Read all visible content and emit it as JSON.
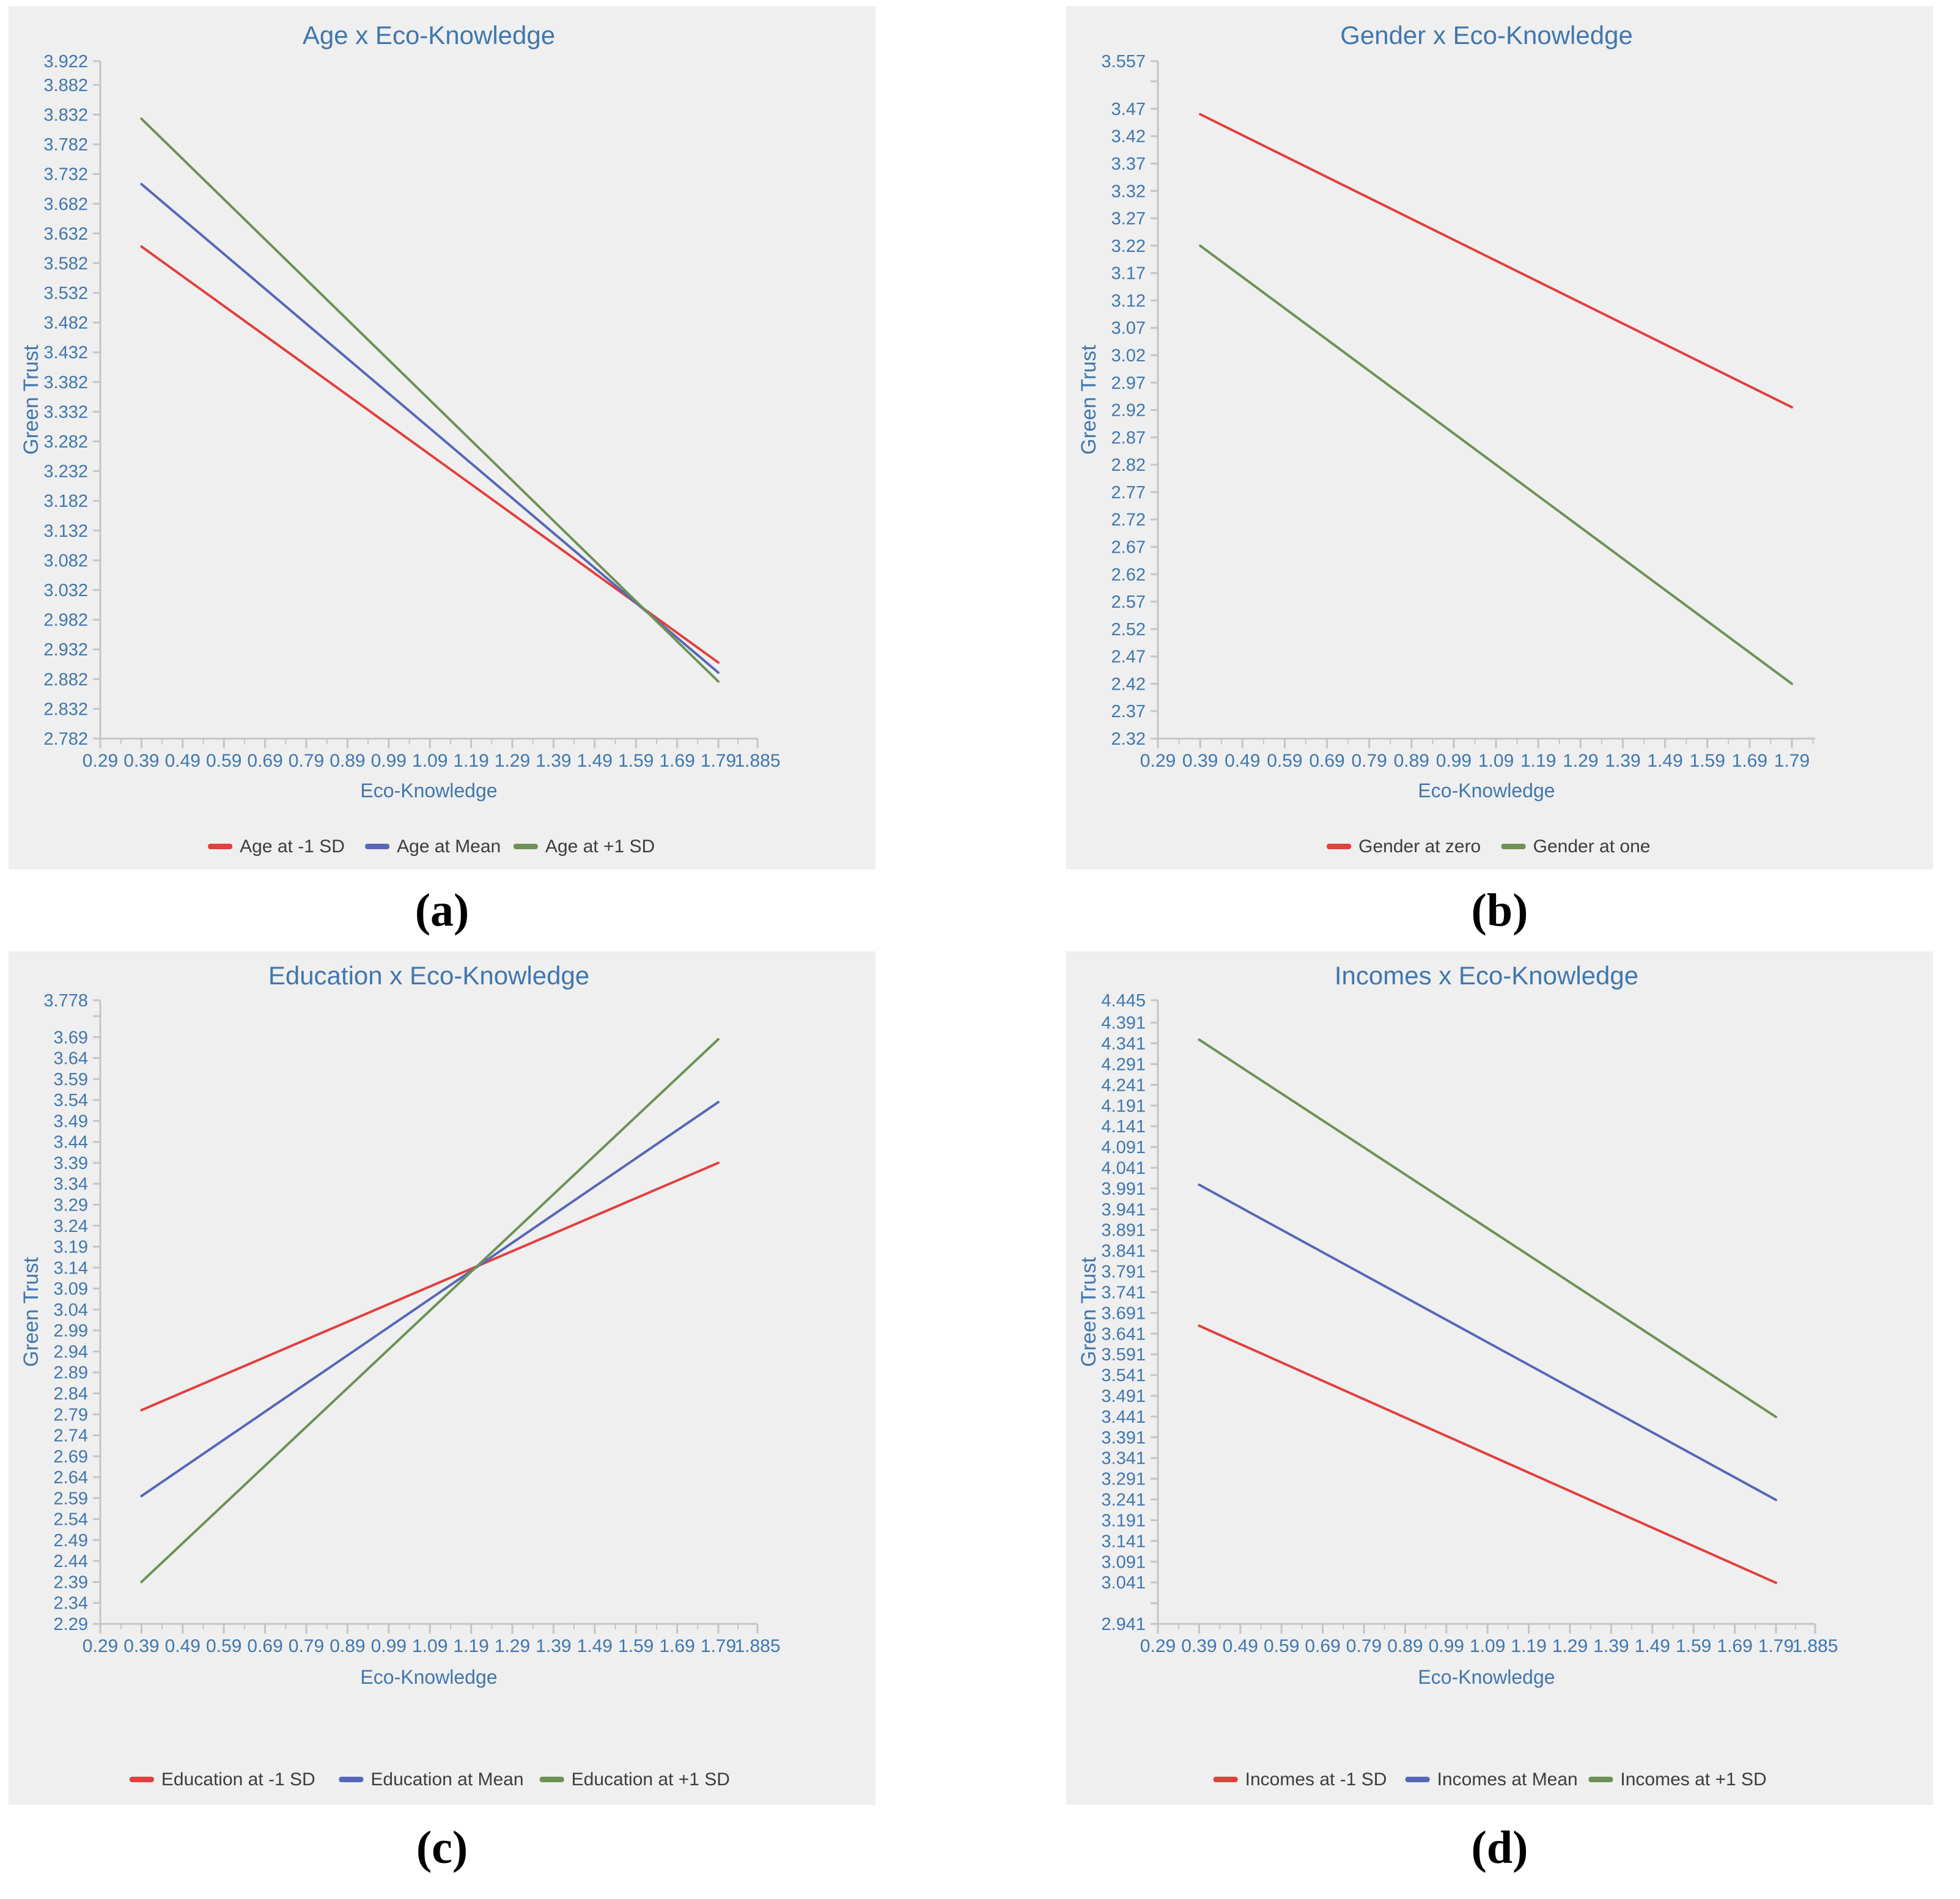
{
  "figure": {
    "background": "#ffffff",
    "panel_background": "#efefef",
    "accent_text_color": "#4077ae",
    "legend_text_color": "#3d3d3d",
    "axis_color": "#c4c4c4"
  },
  "chart_data": [
    {
      "type": "line",
      "panel_label": "(a)",
      "title": "Age x Eco-Knowledge",
      "xlabel": "Eco-Knowledge",
      "ylabel": "Green Trust",
      "grid": false,
      "legend_position": "bottom",
      "x": [
        0.39,
        1.79
      ],
      "xlim": [
        0.29,
        1.885
      ],
      "ylim": [
        2.782,
        3.922
      ],
      "series": [
        {
          "name": "Age at -1 SD",
          "color": "#e2403d",
          "values": [
            3.61,
            2.91
          ]
        },
        {
          "name": "Age at Mean",
          "color": "#5767b8",
          "values": [
            3.715,
            2.893
          ]
        },
        {
          "name": "Age at +1 SD",
          "color": "#6e9156",
          "values": [
            3.825,
            2.878
          ]
        }
      ],
      "x_ticks": [
        {
          "label": "0.29",
          "value": 0.29
        },
        {
          "label": "0.39",
          "value": 0.39
        },
        {
          "label": "0.49",
          "value": 0.49
        },
        {
          "label": "0.59",
          "value": 0.59
        },
        {
          "label": "0.69",
          "value": 0.69
        },
        {
          "label": "0.79",
          "value": 0.79
        },
        {
          "label": "0.89",
          "value": 0.89
        },
        {
          "label": "0.99",
          "value": 0.99
        },
        {
          "label": "1.09",
          "value": 1.09
        },
        {
          "label": "1.19",
          "value": 1.19
        },
        {
          "label": "1.29",
          "value": 1.29
        },
        {
          "label": "1.39",
          "value": 1.39
        },
        {
          "label": "1.49",
          "value": 1.49
        },
        {
          "label": "1.59",
          "value": 1.59
        },
        {
          "label": "1.69",
          "value": 1.69
        },
        {
          "label": "1.79",
          "value": 1.79
        },
        {
          "label": "1.885",
          "value": 1.885
        }
      ],
      "y_ticks": [
        {
          "label": "3.922",
          "value": 3.922
        },
        {
          "label": "3.882",
          "value": 3.882
        },
        {
          "label": "3.832",
          "value": 3.832
        },
        {
          "label": "3.782",
          "value": 3.782
        },
        {
          "label": "3.732",
          "value": 3.732
        },
        {
          "label": "3.682",
          "value": 3.682
        },
        {
          "label": "3.632",
          "value": 3.632
        },
        {
          "label": "3.582",
          "value": 3.582
        },
        {
          "label": "3.532",
          "value": 3.532
        },
        {
          "label": "3.482",
          "value": 3.482
        },
        {
          "label": "3.432",
          "value": 3.432
        },
        {
          "label": "3.382",
          "value": 3.382
        },
        {
          "label": "3.332",
          "value": 3.332
        },
        {
          "label": "3.282",
          "value": 3.282
        },
        {
          "label": "3.232",
          "value": 3.232
        },
        {
          "label": "3.182",
          "value": 3.182
        },
        {
          "label": "3.132",
          "value": 3.132
        },
        {
          "label": "3.082",
          "value": 3.082
        },
        {
          "label": "3.032",
          "value": 3.032
        },
        {
          "label": "2.982",
          "value": 2.982
        },
        {
          "label": "2.932",
          "value": 2.932
        },
        {
          "label": "2.882",
          "value": 2.882
        },
        {
          "label": "2.832",
          "value": 2.832
        },
        {
          "label": "2.782",
          "value": 2.782
        }
      ]
    },
    {
      "type": "line",
      "panel_label": "(b)",
      "title": "Gender x Eco-Knowledge",
      "xlabel": "Eco-Knowledge",
      "ylabel": "Green Trust",
      "grid": false,
      "legend_position": "bottom",
      "x": [
        0.39,
        1.79
      ],
      "xlim": [
        0.29,
        1.845
      ],
      "ylim": [
        2.32,
        3.557
      ],
      "series": [
        {
          "name": "Gender at zero",
          "color": "#e2403d",
          "values": [
            3.46,
            2.925
          ]
        },
        {
          "name": "Gender at one",
          "color": "#6e9156",
          "values": [
            3.22,
            2.42
          ]
        }
      ],
      "x_ticks": [
        {
          "label": "0.29",
          "value": 0.29
        },
        {
          "label": "0.39",
          "value": 0.39
        },
        {
          "label": "0.49",
          "value": 0.49
        },
        {
          "label": "0.59",
          "value": 0.59
        },
        {
          "label": "0.69",
          "value": 0.69
        },
        {
          "label": "0.79",
          "value": 0.79
        },
        {
          "label": "0.89",
          "value": 0.89
        },
        {
          "label": "0.99",
          "value": 0.99
        },
        {
          "label": "1.09",
          "value": 1.09
        },
        {
          "label": "1.19",
          "value": 1.19
        },
        {
          "label": "1.29",
          "value": 1.29
        },
        {
          "label": "1.39",
          "value": 1.39
        },
        {
          "label": "1.49",
          "value": 1.49
        },
        {
          "label": "1.59",
          "value": 1.59
        },
        {
          "label": "1.69",
          "value": 1.69
        },
        {
          "label": "1.79",
          "value": 1.79
        }
      ],
      "y_ticks": [
        {
          "label": "3.557",
          "value": 3.557
        },
        {
          "label": "",
          "value": 3.52
        },
        {
          "label": "3.47",
          "value": 3.47
        },
        {
          "label": "3.42",
          "value": 3.42
        },
        {
          "label": "3.37",
          "value": 3.37
        },
        {
          "label": "3.32",
          "value": 3.32
        },
        {
          "label": "3.27",
          "value": 3.27
        },
        {
          "label": "3.22",
          "value": 3.22
        },
        {
          "label": "3.17",
          "value": 3.17
        },
        {
          "label": "3.12",
          "value": 3.12
        },
        {
          "label": "3.07",
          "value": 3.07
        },
        {
          "label": "3.02",
          "value": 3.02
        },
        {
          "label": "2.97",
          "value": 2.97
        },
        {
          "label": "2.92",
          "value": 2.92
        },
        {
          "label": "2.87",
          "value": 2.87
        },
        {
          "label": "2.82",
          "value": 2.82
        },
        {
          "label": "2.77",
          "value": 2.77
        },
        {
          "label": "2.72",
          "value": 2.72
        },
        {
          "label": "2.67",
          "value": 2.67
        },
        {
          "label": "2.62",
          "value": 2.62
        },
        {
          "label": "2.57",
          "value": 2.57
        },
        {
          "label": "2.52",
          "value": 2.52
        },
        {
          "label": "2.47",
          "value": 2.47
        },
        {
          "label": "2.42",
          "value": 2.42
        },
        {
          "label": "2.37",
          "value": 2.37
        },
        {
          "label": "2.32",
          "value": 2.32
        }
      ]
    },
    {
      "type": "line",
      "panel_label": "(c)",
      "title": "Education x Eco-Knowledge",
      "xlabel": "Eco-Knowledge",
      "ylabel": "Green Trust",
      "grid": false,
      "legend_position": "bottom",
      "x": [
        0.39,
        1.79
      ],
      "xlim": [
        0.29,
        1.885
      ],
      "ylim": [
        2.29,
        3.778
      ],
      "series": [
        {
          "name": "Education at -1 SD",
          "color": "#e2403d",
          "values": [
            2.8,
            3.39
          ]
        },
        {
          "name": "Education at Mean",
          "color": "#5767b8",
          "values": [
            2.595,
            3.535
          ]
        },
        {
          "name": "Education at +1 SD",
          "color": "#6e9156",
          "values": [
            2.39,
            3.685
          ]
        }
      ],
      "x_ticks": [
        {
          "label": "0.29",
          "value": 0.29
        },
        {
          "label": "0.39",
          "value": 0.39
        },
        {
          "label": "0.49",
          "value": 0.49
        },
        {
          "label": "0.59",
          "value": 0.59
        },
        {
          "label": "0.69",
          "value": 0.69
        },
        {
          "label": "0.79",
          "value": 0.79
        },
        {
          "label": "0.89",
          "value": 0.89
        },
        {
          "label": "0.99",
          "value": 0.99
        },
        {
          "label": "1.09",
          "value": 1.09
        },
        {
          "label": "1.19",
          "value": 1.19
        },
        {
          "label": "1.29",
          "value": 1.29
        },
        {
          "label": "1.39",
          "value": 1.39
        },
        {
          "label": "1.49",
          "value": 1.49
        },
        {
          "label": "1.59",
          "value": 1.59
        },
        {
          "label": "1.69",
          "value": 1.69
        },
        {
          "label": "1.79",
          "value": 1.79
        },
        {
          "label": "1.885",
          "value": 1.885
        }
      ],
      "y_ticks": [
        {
          "label": "3.778",
          "value": 3.778
        },
        {
          "label": "",
          "value": 3.74
        },
        {
          "label": "3.69",
          "value": 3.69
        },
        {
          "label": "3.64",
          "value": 3.64
        },
        {
          "label": "3.59",
          "value": 3.59
        },
        {
          "label": "3.54",
          "value": 3.54
        },
        {
          "label": "3.49",
          "value": 3.49
        },
        {
          "label": "3.44",
          "value": 3.44
        },
        {
          "label": "3.39",
          "value": 3.39
        },
        {
          "label": "3.34",
          "value": 3.34
        },
        {
          "label": "3.29",
          "value": 3.29
        },
        {
          "label": "3.24",
          "value": 3.24
        },
        {
          "label": "3.19",
          "value": 3.19
        },
        {
          "label": "3.14",
          "value": 3.14
        },
        {
          "label": "3.09",
          "value": 3.09
        },
        {
          "label": "3.04",
          "value": 3.04
        },
        {
          "label": "2.99",
          "value": 2.99
        },
        {
          "label": "2.94",
          "value": 2.94
        },
        {
          "label": "2.89",
          "value": 2.89
        },
        {
          "label": "2.84",
          "value": 2.84
        },
        {
          "label": "2.79",
          "value": 2.79
        },
        {
          "label": "2.74",
          "value": 2.74
        },
        {
          "label": "2.69",
          "value": 2.69
        },
        {
          "label": "2.64",
          "value": 2.64
        },
        {
          "label": "2.59",
          "value": 2.59
        },
        {
          "label": "2.54",
          "value": 2.54
        },
        {
          "label": "2.49",
          "value": 2.49
        },
        {
          "label": "2.44",
          "value": 2.44
        },
        {
          "label": "2.39",
          "value": 2.39
        },
        {
          "label": "2.34",
          "value": 2.34
        },
        {
          "label": "2.29",
          "value": 2.29
        }
      ]
    },
    {
      "type": "line",
      "panel_label": "(d)",
      "title": "Incomes x Eco-Knowledge",
      "xlabel": "Eco-Knowledge",
      "ylabel": "Green Trust",
      "grid": false,
      "legend_position": "bottom",
      "x": [
        0.39,
        1.79
      ],
      "xlim": [
        0.29,
        1.885
      ],
      "ylim": [
        2.941,
        4.445
      ],
      "series": [
        {
          "name": "Incomes at -1 SD",
          "color": "#e2403d",
          "values": [
            3.66,
            3.04
          ]
        },
        {
          "name": "Incomes at Mean",
          "color": "#5767b8",
          "values": [
            4.0,
            3.24
          ]
        },
        {
          "name": "Incomes at +1 SD",
          "color": "#6e9156",
          "values": [
            4.35,
            3.44
          ]
        }
      ],
      "x_ticks": [
        {
          "label": "0.29",
          "value": 0.29
        },
        {
          "label": "0.39",
          "value": 0.39
        },
        {
          "label": "0.49",
          "value": 0.49
        },
        {
          "label": "0.59",
          "value": 0.59
        },
        {
          "label": "0.69",
          "value": 0.69
        },
        {
          "label": "0.79",
          "value": 0.79
        },
        {
          "label": "0.89",
          "value": 0.89
        },
        {
          "label": "0.99",
          "value": 0.99
        },
        {
          "label": "1.09",
          "value": 1.09
        },
        {
          "label": "1.19",
          "value": 1.19
        },
        {
          "label": "1.29",
          "value": 1.29
        },
        {
          "label": "1.39",
          "value": 1.39
        },
        {
          "label": "1.49",
          "value": 1.49
        },
        {
          "label": "1.59",
          "value": 1.59
        },
        {
          "label": "1.69",
          "value": 1.69
        },
        {
          "label": "1.79",
          "value": 1.79
        },
        {
          "label": "1.885",
          "value": 1.885
        }
      ],
      "y_ticks": [
        {
          "label": "4.445",
          "value": 4.445
        },
        {
          "label": "4.391",
          "value": 4.391
        },
        {
          "label": "4.341",
          "value": 4.341
        },
        {
          "label": "4.291",
          "value": 4.291
        },
        {
          "label": "4.241",
          "value": 4.241
        },
        {
          "label": "4.191",
          "value": 4.191
        },
        {
          "label": "4.141",
          "value": 4.141
        },
        {
          "label": "4.091",
          "value": 4.091
        },
        {
          "label": "4.041",
          "value": 4.041
        },
        {
          "label": "3.991",
          "value": 3.991
        },
        {
          "label": "3.941",
          "value": 3.941
        },
        {
          "label": "3.891",
          "value": 3.891
        },
        {
          "label": "3.841",
          "value": 3.841
        },
        {
          "label": "3.791",
          "value": 3.791
        },
        {
          "label": "3.741",
          "value": 3.741
        },
        {
          "label": "3.691",
          "value": 3.691
        },
        {
          "label": "3.641",
          "value": 3.641
        },
        {
          "label": "3.591",
          "value": 3.591
        },
        {
          "label": "3.541",
          "value": 3.541
        },
        {
          "label": "3.491",
          "value": 3.491
        },
        {
          "label": "3.441",
          "value": 3.441
        },
        {
          "label": "3.391",
          "value": 3.391
        },
        {
          "label": "3.341",
          "value": 3.341
        },
        {
          "label": "3.291",
          "value": 3.291
        },
        {
          "label": "3.241",
          "value": 3.241
        },
        {
          "label": "3.191",
          "value": 3.191
        },
        {
          "label": "3.141",
          "value": 3.141
        },
        {
          "label": "3.091",
          "value": 3.091
        },
        {
          "label": "3.041",
          "value": 3.041
        },
        {
          "label": "",
          "value": 2.991
        },
        {
          "label": "2.941",
          "value": 2.941
        }
      ]
    }
  ]
}
